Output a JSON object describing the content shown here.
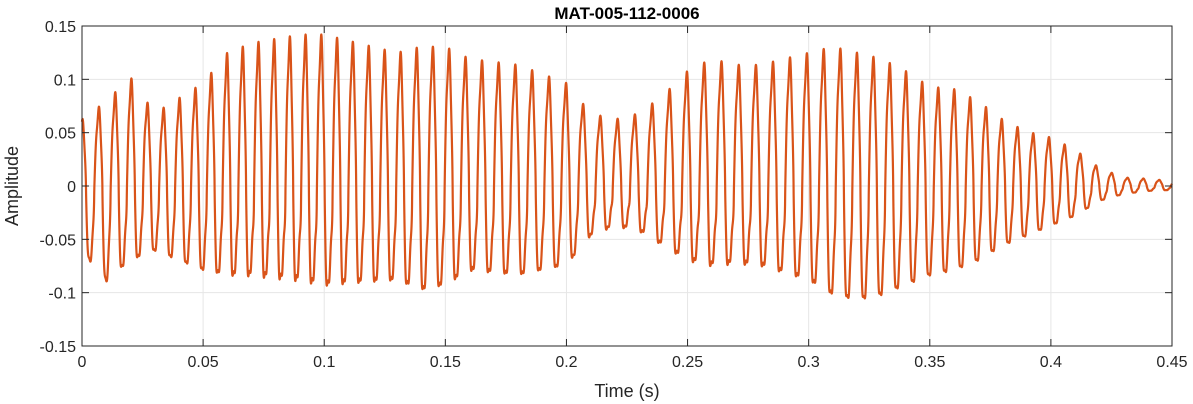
{
  "chart_data": {
    "type": "line",
    "title": "MAT-005-112-0006",
    "xlabel": "Time (s)",
    "ylabel": "Amplitude",
    "xlim": [
      0,
      0.45
    ],
    "ylim": [
      -0.15,
      0.15
    ],
    "xticks": [
      0,
      0.05,
      0.1,
      0.15,
      0.2,
      0.25,
      0.3,
      0.35,
      0.4,
      0.45
    ],
    "xtick_labels": [
      "0",
      "0.05",
      "0.1",
      "0.15",
      "0.2",
      "0.25",
      "0.3",
      "0.35",
      "0.4",
      "0.45"
    ],
    "yticks": [
      -0.15,
      -0.1,
      -0.05,
      0,
      0.05,
      0.1,
      0.15
    ],
    "ytick_labels": [
      "-0.15",
      "-0.1",
      "-0.05",
      "0",
      "0.05",
      "0.1",
      "0.15"
    ],
    "grid": true,
    "series": [
      {
        "color": "#d95319",
        "description": "speech waveform, quasi-periodic oscillation (~6.8 ms period)",
        "envelope": {
          "t": [
            0,
            0.01,
            0.02,
            0.03,
            0.05,
            0.06,
            0.07,
            0.09,
            0.1,
            0.11,
            0.13,
            0.14,
            0.15,
            0.16,
            0.18,
            0.2,
            0.21,
            0.22,
            0.23,
            0.24,
            0.25,
            0.26,
            0.27,
            0.28,
            0.3,
            0.31,
            0.32,
            0.33,
            0.34,
            0.35,
            0.36,
            0.37,
            0.38,
            0.39,
            0.4,
            0.41,
            0.42,
            0.43,
            0.44,
            0.45
          ],
          "max": [
            0.055,
            0.07,
            0.09,
            0.06,
            0.085,
            0.11,
            0.118,
            0.125,
            0.125,
            0.12,
            0.11,
            0.115,
            0.115,
            0.105,
            0.1,
            0.085,
            0.06,
            0.055,
            0.06,
            0.075,
            0.095,
            0.105,
            0.1,
            0.1,
            0.11,
            0.115,
            0.11,
            0.105,
            0.095,
            0.082,
            0.08,
            0.07,
            0.055,
            0.045,
            0.04,
            0.03,
            0.015,
            0.007,
            0.006,
            0.004
          ],
          "min": [
            -0.065,
            -0.095,
            -0.075,
            -0.065,
            -0.085,
            -0.09,
            -0.09,
            -0.095,
            -0.1,
            -0.098,
            -0.095,
            -0.105,
            -0.1,
            -0.085,
            -0.09,
            -0.08,
            -0.05,
            -0.04,
            -0.045,
            -0.06,
            -0.075,
            -0.08,
            -0.078,
            -0.08,
            -0.095,
            -0.11,
            -0.115,
            -0.11,
            -0.1,
            -0.09,
            -0.085,
            -0.075,
            -0.06,
            -0.05,
            -0.04,
            -0.03,
            -0.015,
            -0.008,
            -0.005,
            -0.004
          ]
        }
      }
    ]
  }
}
